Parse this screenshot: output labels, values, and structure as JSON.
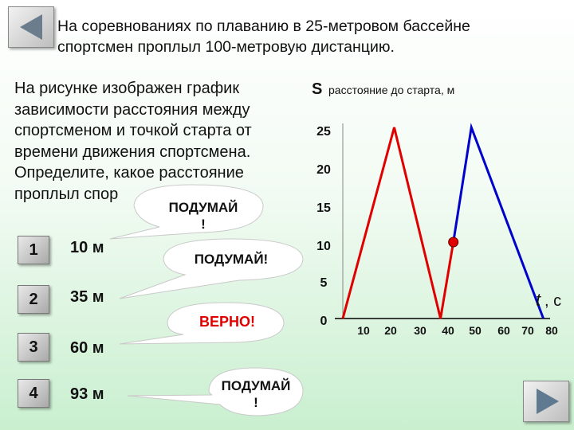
{
  "header": {
    "line1": "На соревнованиях по плаванию в 25-метровом бассейне",
    "line2": "спортсмен проплыл 100-метровую дистанцию."
  },
  "question": {
    "lines": [
      "На рисунке изображен график",
      "зависимости расстояния между",
      "спортсменом и точкой старта от",
      "времени движения спортсмена.",
      "Определите, какое расстояние",
      "проплыл спор"
    ]
  },
  "options": [
    {
      "number": "1",
      "value": "10 м"
    },
    {
      "number": "2",
      "value": "35 м"
    },
    {
      "number": "3",
      "value": "60 м"
    },
    {
      "number": "4",
      "value": "93 м"
    }
  ],
  "callouts": [
    {
      "line1": "ПОДУМАЙ",
      "line2": "!",
      "color": "#111111"
    },
    {
      "line1": "ПОДУМАЙ!",
      "line2": "",
      "color": "#111111"
    },
    {
      "line1": "ВЕРНО!",
      "line2": "",
      "color": "#e00000"
    },
    {
      "line1": "ПОДУМАЙ",
      "line2": "!",
      "color": "#111111"
    }
  ],
  "nav": {
    "prev_icon": "triangle-left-icon",
    "next_icon": "triangle-right-icon"
  },
  "chart_data": {
    "type": "line",
    "ylabel_symbol": "S",
    "ylabel": "расстояние до старта, м",
    "xlabel_symbol": "t",
    "xlabel_unit": ", с",
    "y_ticks": [
      "25",
      "20",
      "15",
      "10",
      "5",
      "0"
    ],
    "x_ticks": [
      "10",
      "20",
      "30",
      "40",
      "50",
      "60",
      "70",
      "80"
    ],
    "xlim": [
      0,
      80
    ],
    "ylim": [
      0,
      25
    ],
    "grid": false,
    "series": [
      {
        "color": "#e00000",
        "x": [
          0,
          20,
          38,
          43
        ],
        "y": [
          0,
          25,
          0,
          10
        ]
      },
      {
        "color": "#0000cc",
        "x": [
          43,
          50,
          78
        ],
        "y": [
          10,
          25,
          0
        ]
      }
    ],
    "marked_point": {
      "x": 43,
      "y": 10
    }
  }
}
